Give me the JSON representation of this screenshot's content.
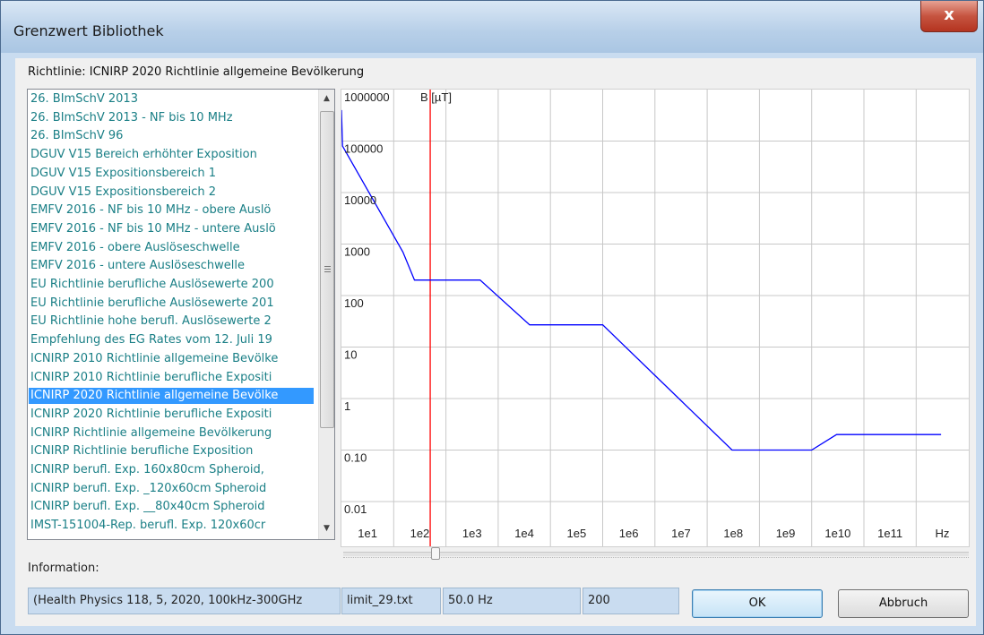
{
  "window": {
    "title": "Grenzwert Bibliothek",
    "close_glyph": "x"
  },
  "directive": {
    "prefix": "Richtlinie:",
    "value": "ICNIRP 2020 Richtlinie allgemeine Bevölkerung"
  },
  "list": {
    "items": [
      "26. BImSchV 2013",
      "26. BImSchV 2013 - NF bis 10 MHz",
      "26. BImSchV 96",
      "DGUV V15 Bereich erhöhter Exposition",
      "DGUV V15 Expositionsbereich 1",
      "DGUV V15 Expositionsbereich 2",
      "EMFV 2016 - NF bis 10 MHz - obere Auslö",
      "EMFV 2016 - NF bis 10 MHz - untere Auslö",
      "EMFV 2016 - obere Auslöseschwelle",
      "EMFV 2016 - untere Auslöseschwelle",
      "EU Richtlinie berufliche Auslösewerte 200",
      "EU Richtlinie berufliche Auslösewerte 201",
      "EU Richtlinie hohe berufl. Auslösewerte 2",
      "Empfehlung des EG Rates vom 12. Juli 19",
      "ICNIRP 2010 Richtlinie allgemeine Bevölke",
      "ICNIRP 2010 Richtlinie berufliche Expositi",
      "ICNIRP 2020 Richtlinie allgemeine Bevölke",
      "ICNIRP 2020 Richtlinie berufliche Expositi",
      "ICNIRP Richtlinie allgemeine Bevölkerung",
      "ICNIRP Richtlinie berufliche Exposition",
      "ICNIRP berufl. Exp. 160x80cm Spheroid,",
      "ICNIRP berufl. Exp. _120x60cm Spheroid",
      "ICNIRP berufl. Exp. __80x40cm Spheroid",
      "IMST-151004-Rep. berufl. Exp. 120x60cr"
    ],
    "selected_index": 16
  },
  "chart_data": {
    "type": "line",
    "scale": "log-log",
    "ylabel": "B [µT]",
    "xlabel": "Hz",
    "y_ticks": [
      "1000000",
      "100000",
      "10000",
      "1000",
      "100",
      "10",
      "1",
      "0.10",
      "0.01"
    ],
    "x_ticks": [
      "1e1",
      "1e2",
      "1e3",
      "1e4",
      "1e5",
      "1e6",
      "1e7",
      "1e8",
      "1e9",
      "1e10",
      "1e11"
    ],
    "xlim": [
      1,
      1000000000000
    ],
    "ylim": [
      0.01,
      1000000
    ],
    "grid": true,
    "series": [
      {
        "color": "#0000ff",
        "points": [
          [
            1,
            400000
          ],
          [
            1.05,
            80000
          ],
          [
            15,
            700
          ],
          [
            25,
            200
          ],
          [
            450,
            200
          ],
          [
            4000,
            27
          ],
          [
            100000,
            27
          ],
          [
            30000000,
            0.1
          ],
          [
            1000000000,
            0.1
          ],
          [
            3000000000,
            0.2
          ],
          [
            300000000000,
            0.2
          ]
        ]
      }
    ],
    "marker": {
      "frequency_hz": 50,
      "color": "#ff0000"
    }
  },
  "info": {
    "label": "Information:",
    "source": "(Health Physics 118, 5, 2020, 100kHz-300GHz",
    "file": "limit_29.txt",
    "frequency": "50.0 Hz",
    "value": "200"
  },
  "buttons": {
    "ok": "OK",
    "cancel": "Abbruch"
  }
}
